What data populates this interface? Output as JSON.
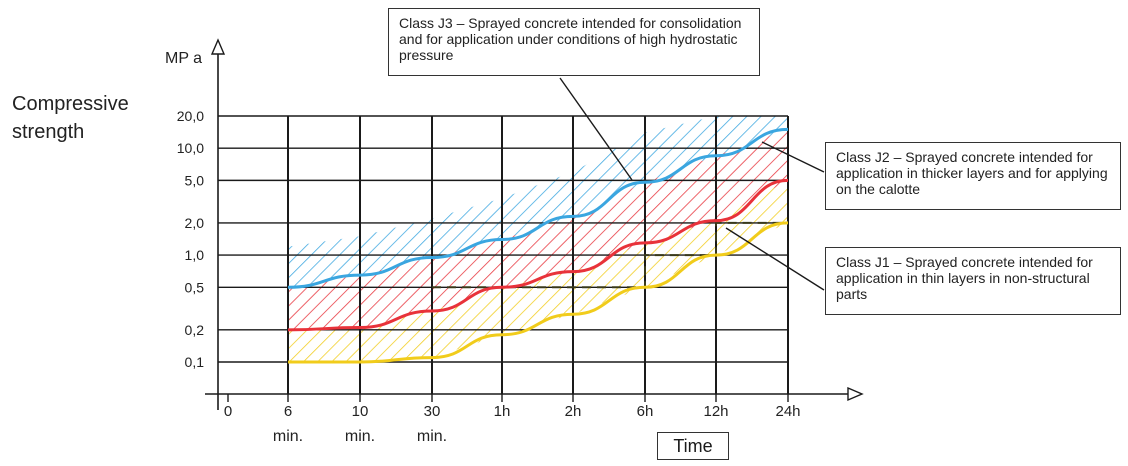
{
  "chart_data": {
    "type": "area",
    "ylabel": "Compressive strength",
    "yunit": "MP a",
    "xlabel": "Time",
    "scale": "log",
    "x_ticks": [
      "0",
      "6 min.",
      "10 min.",
      "30 min.",
      "1h",
      "2h",
      "6h",
      "12h",
      "24h"
    ],
    "y_ticks": [
      "0,1",
      "0,2",
      "0,5",
      "1,0",
      "2,0",
      "5,0",
      "10,0",
      "20,0"
    ],
    "y_values": [
      0.1,
      0.2,
      0.5,
      1.0,
      2.0,
      5.0,
      10.0,
      20.0
    ],
    "series": [
      {
        "name": "Class J3",
        "color": "#3aa6e0",
        "x": [
          "6 min.",
          "10 min.",
          "30 min.",
          "1h",
          "2h",
          "6h",
          "12h",
          "24h"
        ],
        "lower": [
          0.5,
          0.65,
          0.95,
          1.4,
          2.3,
          4.8,
          8.5,
          15.0
        ],
        "upper": [
          1.2,
          1.5,
          2.2,
          3.4,
          6.0,
          14.0,
          20.0,
          20.0
        ]
      },
      {
        "name": "Class J2",
        "color": "#e8323a",
        "x": [
          "6 min.",
          "10 min.",
          "30 min.",
          "1h",
          "2h",
          "6h",
          "12h",
          "24h"
        ],
        "lower": [
          0.2,
          0.21,
          0.3,
          0.5,
          0.7,
          1.3,
          2.1,
          5.0
        ],
        "upper": [
          0.5,
          0.65,
          0.95,
          1.4,
          2.3,
          4.8,
          8.5,
          15.0
        ]
      },
      {
        "name": "Class J1",
        "color": "#f1cc1b",
        "x": [
          "6 min.",
          "10 min.",
          "30 min.",
          "1h",
          "2h",
          "6h",
          "12h",
          "24h"
        ],
        "lower": [
          0.1,
          0.1,
          0.11,
          0.18,
          0.28,
          0.5,
          1.0,
          2.0
        ],
        "upper": [
          0.2,
          0.21,
          0.3,
          0.5,
          0.7,
          1.3,
          2.1,
          5.0
        ]
      }
    ],
    "dashed_steps": [
      {
        "x": [
          "30 min.",
          "1h",
          "1h",
          "6h",
          "6h",
          "12h",
          "12h",
          "24h"
        ],
        "y": [
          0.5,
          0.5,
          0.5,
          0.5,
          1.0,
          1.0,
          2.0,
          2.0
        ]
      }
    ],
    "annotations": {
      "j3": "Class J3 – Sprayed concrete intended for consolidation and for application under conditions of high hydrostatic pressure",
      "j2": "Class J2 – Sprayed concrete intended for application in thicker layers and for applying on the calotte",
      "j1": "Class J1 – Sprayed concrete intended for application in thin layers in non-structural parts"
    }
  }
}
